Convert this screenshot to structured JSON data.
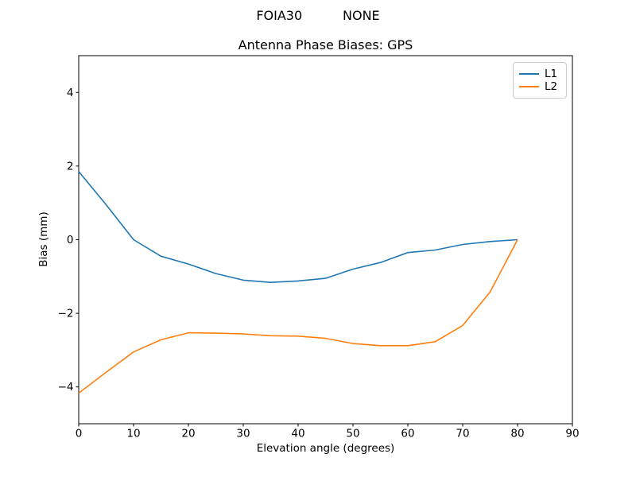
{
  "figure": {
    "suptitle": "FOIA30          NONE",
    "background": "#ffffff",
    "axis_color": "#000000"
  },
  "chart_data": {
    "type": "line",
    "title": "Antenna Phase Biases: GPS",
    "xlabel": "Elevation angle (degrees)",
    "ylabel": "Bias (mm)",
    "xlim": [
      0,
      90
    ],
    "ylim": [
      -5,
      5
    ],
    "xticks": [
      0,
      10,
      20,
      30,
      40,
      50,
      60,
      70,
      80,
      90
    ],
    "yticks": [
      -4,
      -2,
      0,
      2,
      4
    ],
    "grid": false,
    "legend_position": "upper right",
    "x": [
      0,
      5,
      10,
      15,
      20,
      25,
      30,
      35,
      40,
      45,
      50,
      55,
      60,
      65,
      70,
      75,
      80
    ],
    "series": [
      {
        "name": "L1",
        "color": "#1f77b4",
        "values": [
          1.85,
          0.95,
          0.0,
          -0.45,
          -0.66,
          -0.92,
          -1.1,
          -1.16,
          -1.12,
          -1.05,
          -0.8,
          -0.62,
          -0.35,
          -0.28,
          -0.13,
          -0.05,
          0.0
        ]
      },
      {
        "name": "L2",
        "color": "#ff7f0e",
        "values": [
          -4.17,
          -3.6,
          -3.05,
          -2.72,
          -2.53,
          -2.54,
          -2.56,
          -2.61,
          -2.62,
          -2.68,
          -2.82,
          -2.88,
          -2.88,
          -2.77,
          -2.33,
          -1.42,
          0.0
        ]
      }
    ]
  }
}
